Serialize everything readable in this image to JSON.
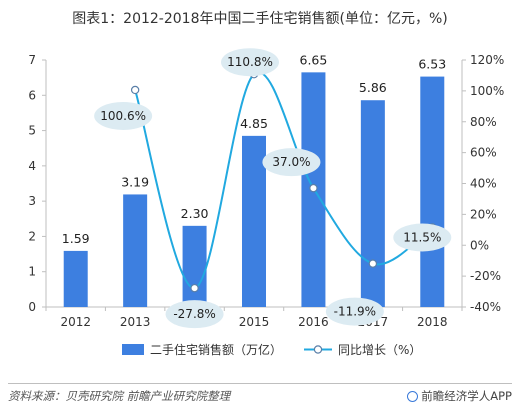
{
  "title": "图表1：2012-2018年中国二手住宅销售额(单位：亿元，%)",
  "chart_data": {
    "type": "bar",
    "title": "图表1：2012-2018年中国二手住宅销售额(单位：亿元，%)",
    "categories": [
      "2012",
      "2013",
      "2014",
      "2015",
      "2016",
      "2017",
      "2018"
    ],
    "series": [
      {
        "name": "二手住宅销售额（万亿）",
        "type": "bar",
        "axis": "left",
        "values": [
          1.59,
          3.19,
          2.3,
          4.85,
          6.65,
          5.86,
          6.53
        ],
        "labels": [
          "1.59",
          "3.19",
          "2.30",
          "4.85",
          "6.65",
          "5.86",
          "6.53"
        ],
        "color": "#3d7fe0"
      },
      {
        "name": "同比增长（%）",
        "type": "line",
        "axis": "right",
        "x": [
          "2013",
          "2014",
          "2015",
          "2016",
          "2017",
          "2018"
        ],
        "values": [
          100.6,
          -27.8,
          110.8,
          37.0,
          -11.9,
          11.5
        ],
        "labels": [
          "100.6%",
          "-27.8%",
          "110.8%",
          "37.0%",
          "-11.9%",
          "11.5%"
        ],
        "color": "#21a9e0"
      }
    ],
    "y_left": {
      "range": [
        0,
        7
      ],
      "ticks": [
        "0",
        "1",
        "2",
        "3",
        "4",
        "5",
        "6",
        "7"
      ]
    },
    "y_right": {
      "range": [
        -40,
        120
      ],
      "ticks": [
        "-40%",
        "-20%",
        "0%",
        "20%",
        "40%",
        "60%",
        "80%",
        "100%",
        "120%"
      ]
    },
    "grid": false,
    "legend": "bottom",
    "label_bubble_color": "#dcebf2"
  },
  "footer": {
    "source": "资料来源：贝壳研究院 前瞻产业研究院整理",
    "brand": "前瞻经济学人APP"
  }
}
